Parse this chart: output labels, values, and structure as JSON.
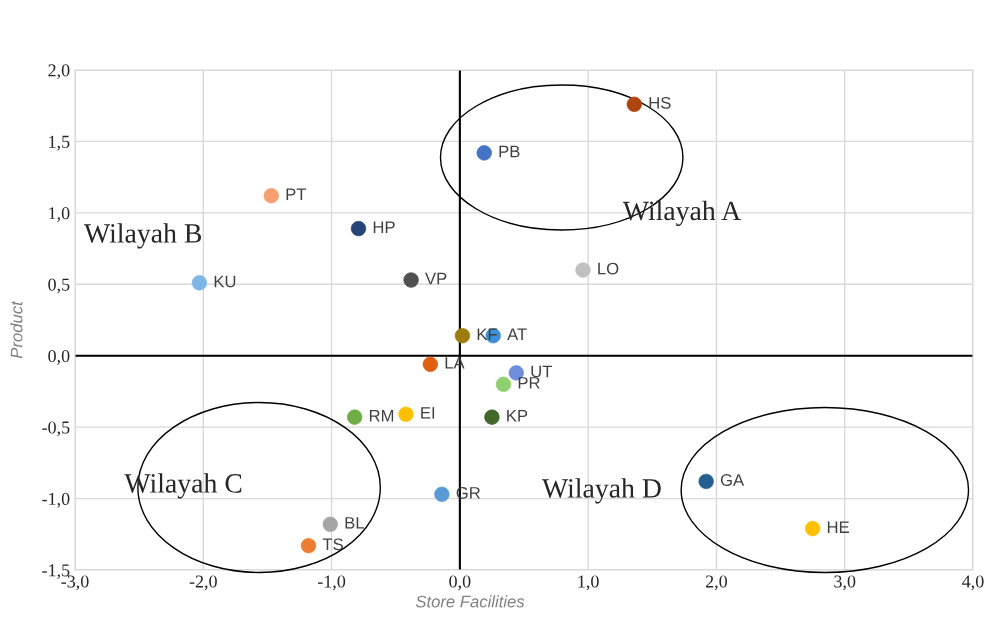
{
  "chart_data": {
    "type": "scatter",
    "xlabel": "Store Facilities",
    "ylabel": "Product",
    "xlim": [
      -3.0,
      4.0
    ],
    "ylim": [
      -1.5,
      2.0
    ],
    "xticks": [
      {
        "value": -3.0,
        "label": "-3,0"
      },
      {
        "value": -2.0,
        "label": "-2,0"
      },
      {
        "value": -1.0,
        "label": "-1,0"
      },
      {
        "value": 0.0,
        "label": "0,0"
      },
      {
        "value": 1.0,
        "label": "1,0"
      },
      {
        "value": 2.0,
        "label": "2,0"
      },
      {
        "value": 3.0,
        "label": "3,0"
      },
      {
        "value": 4.0,
        "label": "4,0"
      }
    ],
    "yticks": [
      {
        "value": -1.5,
        "label": "-1,5"
      },
      {
        "value": -1.0,
        "label": "-1,0"
      },
      {
        "value": -0.5,
        "label": "-0,5"
      },
      {
        "value": 0.0,
        "label": "0,0"
      },
      {
        "value": 0.5,
        "label": "0,5"
      },
      {
        "value": 1.0,
        "label": "1,0"
      },
      {
        "value": 1.5,
        "label": "1,5"
      },
      {
        "value": 2.0,
        "label": "2,0"
      }
    ],
    "grid": true,
    "legend": false,
    "marker": "circle",
    "annotations": [
      "Wilayah A",
      "Wilayah B",
      "Wilayah C",
      "Wilayah D"
    ],
    "series": [
      {
        "name": "HS",
        "color": "#b0440f",
        "x": [
          1.36
        ],
        "values": [
          1.76
        ]
      },
      {
        "name": "PB",
        "color": "#4472c4",
        "x": [
          0.19
        ],
        "values": [
          1.42
        ]
      },
      {
        "name": "PT",
        "color": "#f4a070",
        "x": [
          -1.47
        ],
        "values": [
          1.12
        ]
      },
      {
        "name": "HP",
        "color": "#264478",
        "x": [
          -0.79
        ],
        "values": [
          0.89
        ]
      },
      {
        "name": "KU",
        "color": "#7eb6e6",
        "x": [
          -2.03
        ],
        "values": [
          0.51
        ]
      },
      {
        "name": "VP",
        "color": "#505050",
        "x": [
          -0.38
        ],
        "values": [
          0.53
        ]
      },
      {
        "name": "LO",
        "color": "#c0c0c0",
        "x": [
          0.96
        ],
        "values": [
          0.6
        ]
      },
      {
        "name": "KF",
        "color": "#9e7c0c",
        "x": [
          0.02
        ],
        "values": [
          0.14
        ]
      },
      {
        "name": "AT",
        "color": "#3d8fd9",
        "x": [
          0.26
        ],
        "values": [
          0.14
        ]
      },
      {
        "name": "LA",
        "color": "#e0600f",
        "x": [
          -0.23
        ],
        "values": [
          -0.06
        ]
      },
      {
        "name": "UT",
        "color": "#6f8fdc",
        "x": [
          0.44
        ],
        "values": [
          -0.12
        ]
      },
      {
        "name": "PR",
        "color": "#8fd16f",
        "x": [
          0.34
        ],
        "values": [
          -0.2
        ]
      },
      {
        "name": "RM",
        "color": "#70ad47",
        "x": [
          -0.82
        ],
        "values": [
          -0.43
        ]
      },
      {
        "name": "EI",
        "color": "#ffc000",
        "x": [
          -0.42
        ],
        "values": [
          -0.41
        ]
      },
      {
        "name": "KP",
        "color": "#43682b",
        "x": [
          0.25
        ],
        "values": [
          -0.43
        ]
      },
      {
        "name": "GR",
        "color": "#5b9bd5",
        "x": [
          -0.14
        ],
        "values": [
          -0.97
        ]
      },
      {
        "name": "BL",
        "color": "#a5a5a5",
        "x": [
          -1.01
        ],
        "values": [
          -1.18
        ]
      },
      {
        "name": "TS",
        "color": "#ed7d31",
        "x": [
          -1.18
        ],
        "values": [
          -1.33
        ]
      },
      {
        "name": "GA",
        "color": "#255e91",
        "x": [
          1.92
        ],
        "values": [
          -0.88
        ]
      },
      {
        "name": "HE",
        "color": "#ffc000",
        "x": [
          2.75
        ],
        "values": [
          -1.21
        ]
      }
    ]
  }
}
